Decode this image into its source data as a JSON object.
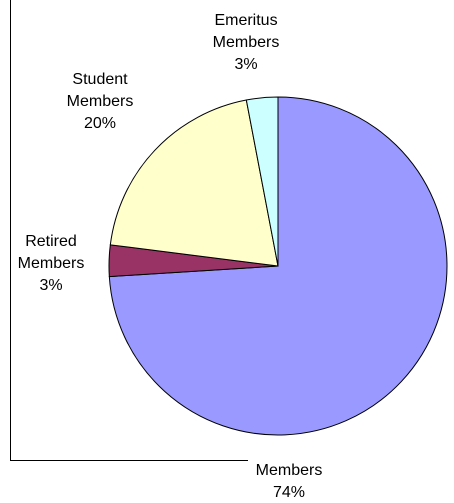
{
  "chart_data": {
    "type": "pie",
    "slices": [
      {
        "label_lines": [
          "Members"
        ],
        "percent_text": "74%",
        "value": 74,
        "color": "#9999ff"
      },
      {
        "label_lines": [
          "Retired",
          "Members"
        ],
        "percent_text": "3%",
        "value": 3,
        "color": "#993366"
      },
      {
        "label_lines": [
          "Student",
          "Members"
        ],
        "percent_text": "20%",
        "value": 20,
        "color": "#ffffcc"
      },
      {
        "label_lines": [
          "Emeritus",
          "Members"
        ],
        "percent_text": "3%",
        "value": 3,
        "color": "#ccffff"
      }
    ],
    "start_angle_deg": 0,
    "direction": "clockwise-from-top",
    "legend": "none",
    "data_labels": "outside"
  }
}
